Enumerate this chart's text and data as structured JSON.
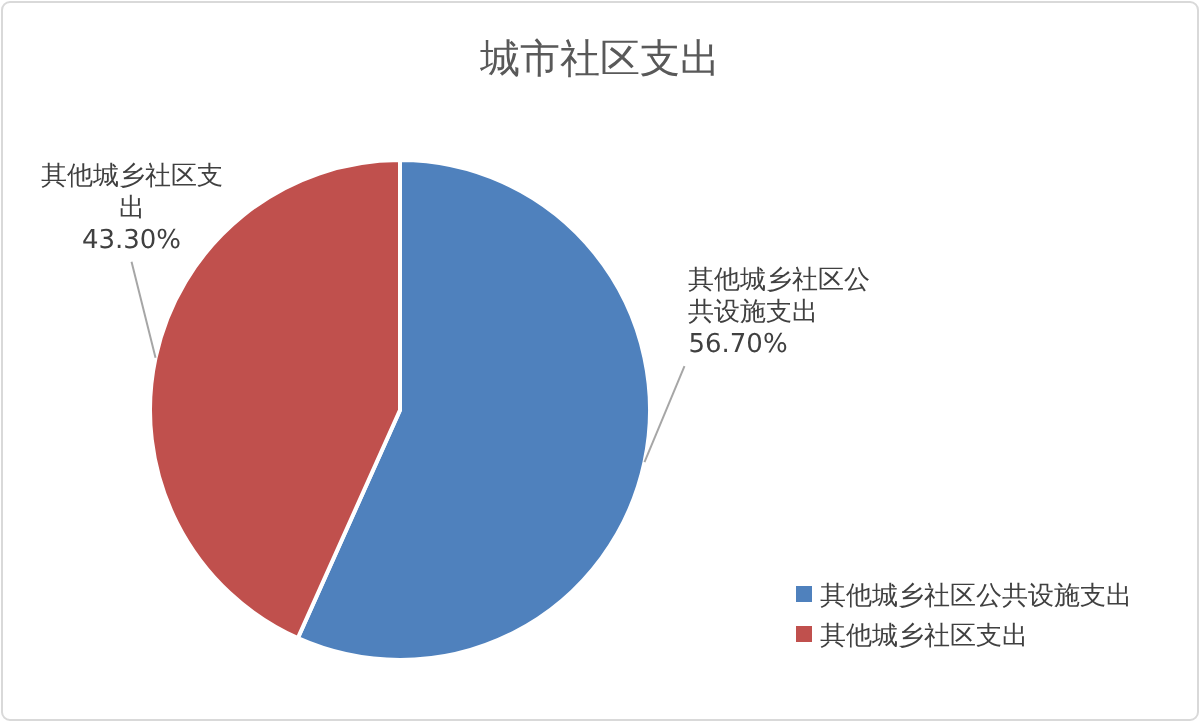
{
  "chart_data": {
    "type": "pie",
    "title": "城市社区支出",
    "categories": [
      "其他城乡社区公共设施支出",
      "其他城乡社区支出"
    ],
    "values": [
      56.7,
      43.3
    ],
    "value_labels": [
      "56.70%",
      "43.30%"
    ],
    "colors": [
      "#4f81bd",
      "#c0504d"
    ],
    "legend": "bottom right"
  }
}
